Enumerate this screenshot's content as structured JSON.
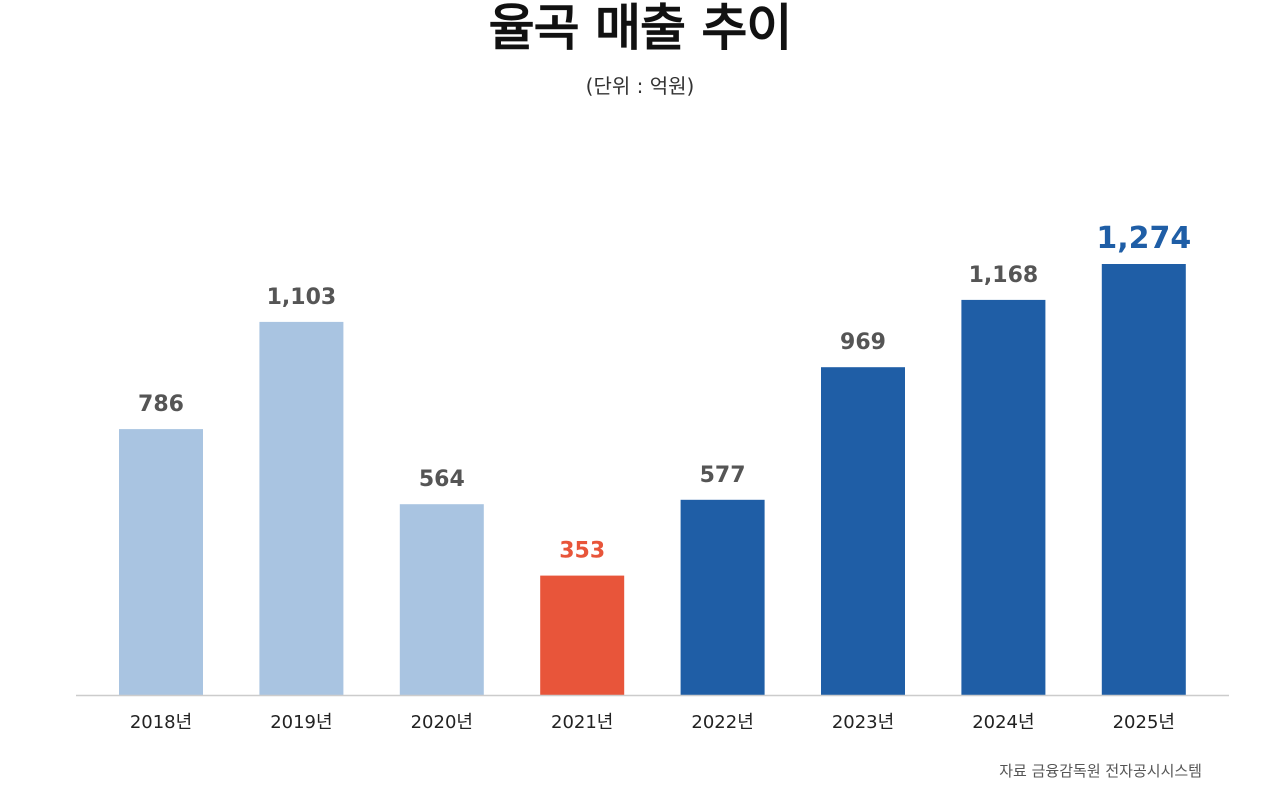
{
  "title": "율곡 매출 추이",
  "subtitle": "(단위 : 억원)",
  "source": "자료 금융감독원 전자공시시스템",
  "chart_data": {
    "type": "bar",
    "title": "율곡 매출 추이",
    "unit": "(단위 : 억원)",
    "categories": [
      "2018년",
      "2019년",
      "2020년",
      "2021년",
      "2022년",
      "2023년",
      "2024년",
      "2025년"
    ],
    "values": [
      786,
      1103,
      564,
      353,
      577,
      969,
      1168,
      1274
    ],
    "value_labels": [
      "786",
      "1,103",
      "564",
      "353",
      "577",
      "969",
      "1,168",
      "1,274"
    ],
    "bar_colors": [
      "#a9c4e1",
      "#a9c4e1",
      "#a9c4e1",
      "#e8553a",
      "#1f5ea6",
      "#1f5ea6",
      "#1f5ea6",
      "#1f5ea6"
    ],
    "label_colors": [
      "#555555",
      "#555555",
      "#555555",
      "#e8553a",
      "#555555",
      "#555555",
      "#555555",
      "#1f5ea6"
    ],
    "ylim": [
      0,
      1274
    ],
    "grid": false,
    "legend": "none"
  }
}
